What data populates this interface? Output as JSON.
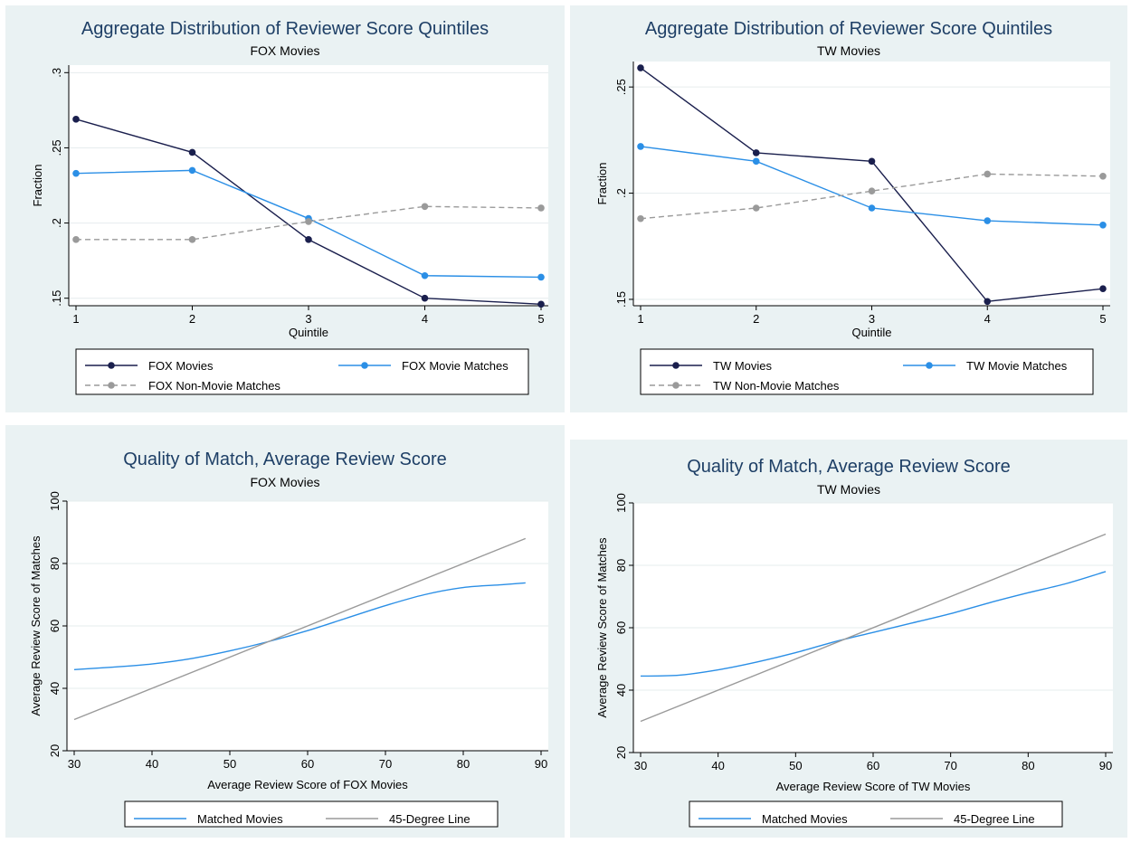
{
  "colors": {
    "background": "#eaf2f3",
    "plot_bg": "#ffffff",
    "title": "#1e3f66",
    "grid": "#e6ecee",
    "series": {
      "movies": "#1a1f4d",
      "movie_matches": "#2b8fe6",
      "non_movie": "#9a9a9a",
      "matched_line": "#2b8fe6",
      "degree_line": "#9a9a9a"
    }
  },
  "chart_data": [
    {
      "type": "line",
      "title": "Aggregate Distribution of Reviewer Score Quintiles",
      "subtitle": "FOX Movies",
      "xlabel": "Quintile",
      "ylabel": "Fraction",
      "xlim": [
        1,
        5
      ],
      "ylim": [
        0.145,
        0.305
      ],
      "xticks": [
        "1",
        "2",
        "3",
        "4",
        "5"
      ],
      "yticks": [
        ".15",
        ".2",
        ".25",
        ".3"
      ],
      "ytick_values": [
        0.15,
        0.2,
        0.25,
        0.3
      ],
      "grid": true,
      "legend_placement": "bottom",
      "x": [
        1,
        2,
        3,
        4,
        5
      ],
      "series": [
        {
          "name": "FOX Movies",
          "color_key": "movies",
          "style": "solid",
          "markers": true,
          "values": [
            0.269,
            0.247,
            0.189,
            0.15,
            0.146
          ]
        },
        {
          "name": "FOX Movie Matches",
          "color_key": "movie_matches",
          "style": "solid",
          "markers": true,
          "values": [
            0.233,
            0.235,
            0.203,
            0.165,
            0.164
          ]
        },
        {
          "name": "FOX Non-Movie Matches",
          "color_key": "non_movie",
          "style": "dashed",
          "markers": true,
          "values": [
            0.189,
            0.189,
            0.201,
            0.211,
            0.21
          ]
        }
      ]
    },
    {
      "type": "line",
      "title": "Aggregate Distribution of Reviewer Score Quintiles",
      "subtitle": "TW Movies",
      "xlabel": "Quintile",
      "ylabel": "Fraction",
      "xlim": [
        1,
        5
      ],
      "ylim": [
        0.147,
        0.262
      ],
      "xticks": [
        "1",
        "2",
        "3",
        "4",
        "5"
      ],
      "yticks": [
        ".15",
        ".2",
        ".25"
      ],
      "ytick_values": [
        0.15,
        0.2,
        0.25
      ],
      "grid": true,
      "legend_placement": "bottom",
      "x": [
        1,
        2,
        3,
        4,
        5
      ],
      "series": [
        {
          "name": "TW Movies",
          "color_key": "movies",
          "style": "solid",
          "markers": true,
          "values": [
            0.259,
            0.219,
            0.215,
            0.149,
            0.155
          ]
        },
        {
          "name": "TW Movie Matches",
          "color_key": "movie_matches",
          "style": "solid",
          "markers": true,
          "values": [
            0.222,
            0.215,
            0.193,
            0.187,
            0.185
          ]
        },
        {
          "name": "TW Non-Movie Matches",
          "color_key": "non_movie",
          "style": "dashed",
          "markers": true,
          "values": [
            0.188,
            0.193,
            0.201,
            0.209,
            0.208
          ]
        }
      ]
    },
    {
      "type": "line",
      "title": "Quality of Match, Average Review Score",
      "subtitle": "FOX Movies",
      "xlabel": "Average Review Score of FOX Movies",
      "ylabel": "Average Review Score of Matches",
      "xlim": [
        30,
        90
      ],
      "ylim": [
        20,
        100
      ],
      "xticks": [
        "30",
        "40",
        "50",
        "60",
        "70",
        "80",
        "90"
      ],
      "xtick_values": [
        30,
        40,
        50,
        60,
        70,
        80,
        90
      ],
      "yticks": [
        "20",
        "40",
        "60",
        "80",
        "100"
      ],
      "ytick_values": [
        20,
        40,
        60,
        80,
        100
      ],
      "grid": true,
      "legend_placement": "bottom",
      "series": [
        {
          "name": "Matched Movies",
          "color_key": "matched_line",
          "style": "solid",
          "markers": false,
          "x": [
            30,
            35,
            40,
            45,
            50,
            55,
            60,
            65,
            70,
            75,
            80,
            85,
            88
          ],
          "values": [
            46,
            46.8,
            47.8,
            49.5,
            52,
            55,
            58.5,
            62.5,
            66.5,
            70,
            72.3,
            73.2,
            73.8
          ]
        },
        {
          "name": "45-Degree Line",
          "color_key": "degree_line",
          "style": "solid",
          "markers": false,
          "x": [
            30,
            88
          ],
          "values": [
            30,
            88
          ]
        }
      ]
    },
    {
      "type": "line",
      "title": "Quality of Match, Average Review Score",
      "subtitle": "TW Movies",
      "xlabel": "Average Review Score of TW Movies",
      "ylabel": "Average Review Score of Matches",
      "xlim": [
        30,
        90
      ],
      "ylim": [
        20,
        100
      ],
      "xticks": [
        "30",
        "40",
        "50",
        "60",
        "70",
        "80",
        "90"
      ],
      "xtick_values": [
        30,
        40,
        50,
        60,
        70,
        80,
        90
      ],
      "yticks": [
        "20",
        "40",
        "60",
        "80",
        "100"
      ],
      "ytick_values": [
        20,
        40,
        60,
        80,
        100
      ],
      "grid": true,
      "legend_placement": "bottom",
      "series": [
        {
          "name": "Matched Movies",
          "color_key": "matched_line",
          "style": "solid",
          "markers": false,
          "x": [
            30,
            35,
            40,
            45,
            50,
            55,
            60,
            65,
            70,
            75,
            80,
            85,
            90
          ],
          "values": [
            44.5,
            44.8,
            46.5,
            49,
            52,
            55.5,
            58.5,
            61.5,
            64.5,
            68,
            71.2,
            74.2,
            78
          ]
        },
        {
          "name": "45-Degree Line",
          "color_key": "degree_line",
          "style": "solid",
          "markers": false,
          "x": [
            30,
            90
          ],
          "values": [
            30,
            90
          ]
        }
      ]
    }
  ]
}
